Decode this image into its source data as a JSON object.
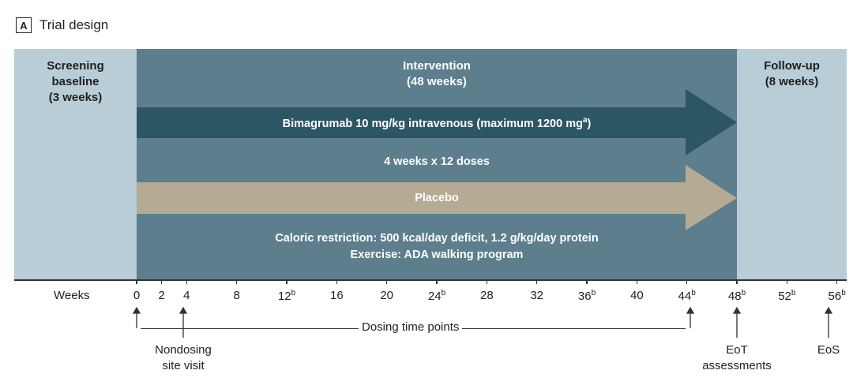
{
  "panel": {
    "letter": "A",
    "title": "Trial design"
  },
  "phases": {
    "screening": {
      "line1": "Screening",
      "line2": "baseline",
      "line3": "(3 weeks)"
    },
    "intervention": {
      "line1": "Intervention",
      "line2": "(48 weeks)"
    },
    "followup": {
      "line1": "Follow-up",
      "line2": "(8 weeks)"
    }
  },
  "arms": {
    "drug": {
      "label": "Bimagrumab 10 mg/kg intravenous (maximum 1200 mg",
      "superscript": "a",
      "close": ")",
      "color": "#2d5665"
    },
    "dosing_schedule": "4 weeks x 12 doses",
    "placebo": {
      "label": "Placebo",
      "color": "#b5aa94"
    }
  },
  "lifestyle": {
    "line1": "Caloric restriction: 500 kcal/day deficit, 1.2 g/kg/day protein",
    "line2": "Exercise: ADA walking program"
  },
  "axis": {
    "title": "Weeks",
    "ticks": [
      {
        "value": 0,
        "label": "0",
        "sup": ""
      },
      {
        "value": 2,
        "label": "2",
        "sup": ""
      },
      {
        "value": 4,
        "label": "4",
        "sup": ""
      },
      {
        "value": 8,
        "label": "8",
        "sup": ""
      },
      {
        "value": 12,
        "label": "12",
        "sup": "b"
      },
      {
        "value": 16,
        "label": "16",
        "sup": ""
      },
      {
        "value": 20,
        "label": "20",
        "sup": ""
      },
      {
        "value": 24,
        "label": "24",
        "sup": "b"
      },
      {
        "value": 28,
        "label": "28",
        "sup": ""
      },
      {
        "value": 32,
        "label": "32",
        "sup": ""
      },
      {
        "value": 36,
        "label": "36",
        "sup": "b"
      },
      {
        "value": 40,
        "label": "40",
        "sup": ""
      },
      {
        "value": 44,
        "label": "44",
        "sup": "b"
      },
      {
        "value": 48,
        "label": "48",
        "sup": "b"
      },
      {
        "value": 52,
        "label": "52",
        "sup": "b"
      },
      {
        "value": 56,
        "label": "56",
        "sup": "b"
      }
    ]
  },
  "annotations": {
    "dosing_time_points": "Dosing time points",
    "nondosing": {
      "line1": "Nondosing",
      "line2": "site visit"
    },
    "eot": {
      "line1": "EoT",
      "line2": "assessments"
    },
    "eos": "EoS"
  }
}
